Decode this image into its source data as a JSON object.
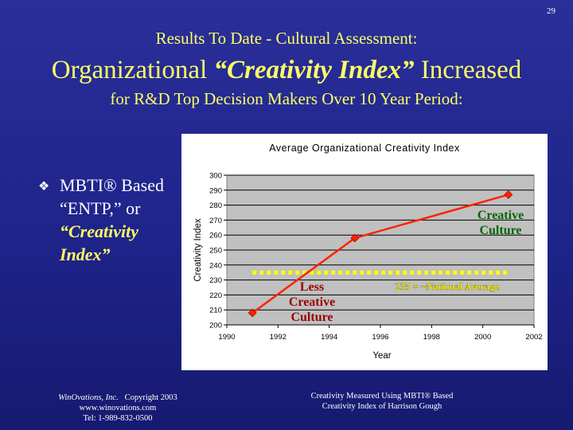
{
  "page_number": "29",
  "title": {
    "line1": "Results To Date - Cultural Assessment:",
    "line2_prefix": "Organizational ",
    "line2_emphasis": "“Creativity Index”",
    "line2_suffix": " Increased",
    "line3": "for R&D Top Decision Makers Over 10 Year Period:"
  },
  "bullet": {
    "icon": "diamond-bullet-icon",
    "text": "MBTI® Based “ENTP,” or",
    "emphasis": "“Creativity Index”"
  },
  "chart_data": {
    "type": "line",
    "title": "Average Organizational Creativity Index",
    "xlabel": "Year",
    "ylabel": "Creativity Index",
    "xlim": [
      1990,
      2002
    ],
    "ylim": [
      200,
      300
    ],
    "xticks": [
      1990,
      1992,
      1994,
      1996,
      1998,
      2000,
      2002
    ],
    "yticks": [
      200,
      210,
      220,
      230,
      240,
      250,
      260,
      270,
      280,
      290,
      300
    ],
    "grid": true,
    "series": [
      {
        "x": [
          1991,
          1995,
          2001
        ],
        "values": [
          208,
          258,
          287
        ],
        "color": "#ff2200"
      }
    ],
    "reference_line": {
      "y": 235,
      "label": "235 = ~National Average",
      "color": "#ffff00"
    },
    "annotations": {
      "less_creative": [
        "Less",
        "Creative",
        "Culture"
      ],
      "creative": [
        "Creative",
        "Culture"
      ]
    },
    "colors": {
      "plot_bg": "#c0c0c0",
      "annotation_text": "#990000",
      "creative_text": "#006600"
    }
  },
  "footer": {
    "company": "WinOvations, Inc.",
    "copyright": "Copyright 2003",
    "website": "www.winovations.com",
    "phone": "Tel:  1-989-832-0500",
    "note_line1": "Creativity Measured Using MBTI® Based",
    "note_line2": "Creativity Index of Harrison Gough"
  }
}
